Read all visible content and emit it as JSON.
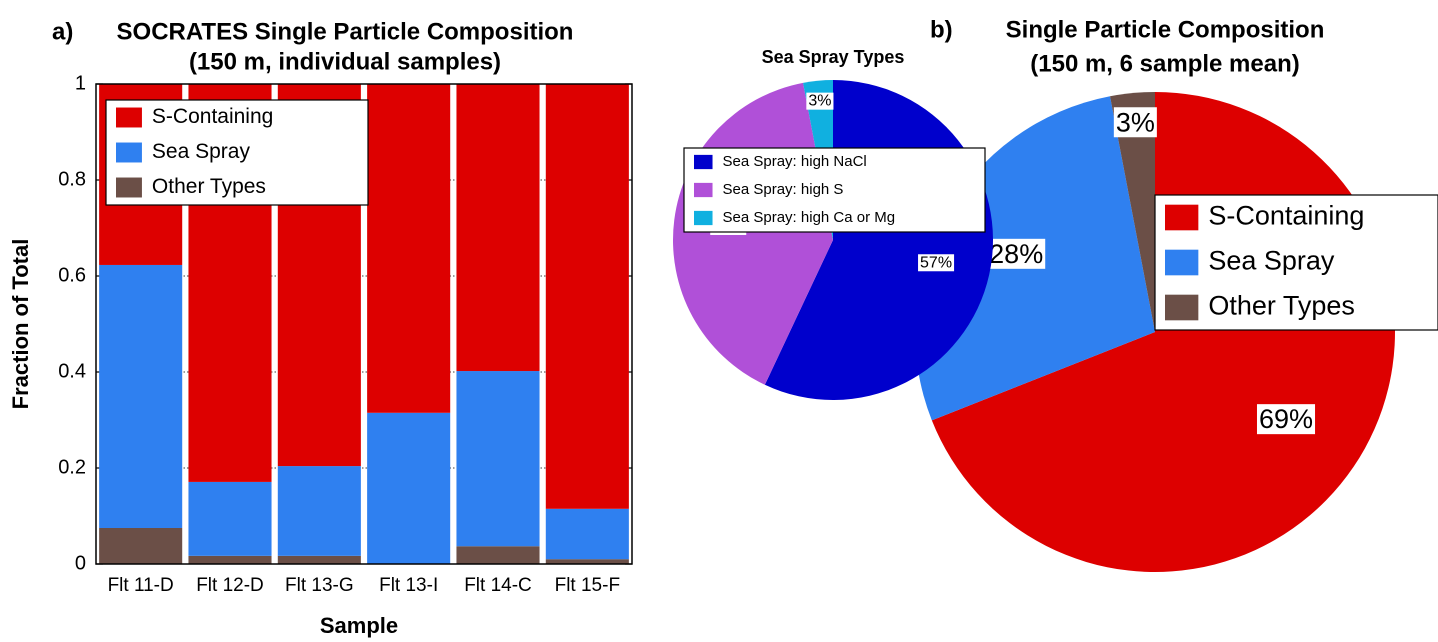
{
  "chart_data": [
    {
      "type": "bar",
      "stacked": true,
      "panel_label": "a)",
      "title": "SOCRATES Single Particle Composition",
      "subtitle": "(150 m, individual samples)",
      "xlabel": "Sample",
      "ylabel": "Fraction of Total",
      "categories": [
        "Flt 11-D",
        "Flt 12-D",
        "Flt 13-G",
        "Flt 13-I",
        "Flt 14-C",
        "Flt 15-F"
      ],
      "series": [
        {
          "name": "S-Containing",
          "color": "#dd0000",
          "values": [
            0.377,
            0.829,
            0.796,
            0.685,
            0.598,
            0.885
          ]
        },
        {
          "name": "Sea Spray",
          "color": "#2f80f0",
          "values": [
            0.548,
            0.154,
            0.187,
            0.315,
            0.365,
            0.105
          ]
        },
        {
          "name": "Other Types",
          "color": "#6b4f47",
          "values": [
            0.075,
            0.017,
            0.017,
            0,
            0.037,
            0.01
          ]
        }
      ],
      "ylim": [
        0,
        1
      ],
      "yticks": [
        0,
        0.2,
        0.4,
        0.6,
        0.8,
        1
      ],
      "grid": true,
      "legend": "upper left"
    },
    {
      "type": "pie",
      "panel_label": "b)",
      "title": "Single Particle Composition",
      "subtitle": "(150 m, 6 sample mean)",
      "categories": [
        "S-Containing",
        "Sea Spray",
        "Other Types"
      ],
      "values": [
        69,
        28,
        3
      ],
      "value_labels": [
        "69%",
        "28%",
        "3%"
      ],
      "colors": [
        "#dd0000",
        "#2f80f0",
        "#6b4f47"
      ],
      "legend": "right"
    },
    {
      "type": "pie",
      "title": "Sea Spray Types",
      "categories": [
        "Sea Spray: high NaCl",
        "Sea Spray: high S",
        "Sea Spray: high Ca or Mg"
      ],
      "values": [
        57,
        40,
        3
      ],
      "value_labels": [
        "57%",
        "40%",
        "3%"
      ],
      "colors": [
        "#0000cc",
        "#b050d8",
        "#10b0e0"
      ],
      "legend": "center"
    }
  ]
}
